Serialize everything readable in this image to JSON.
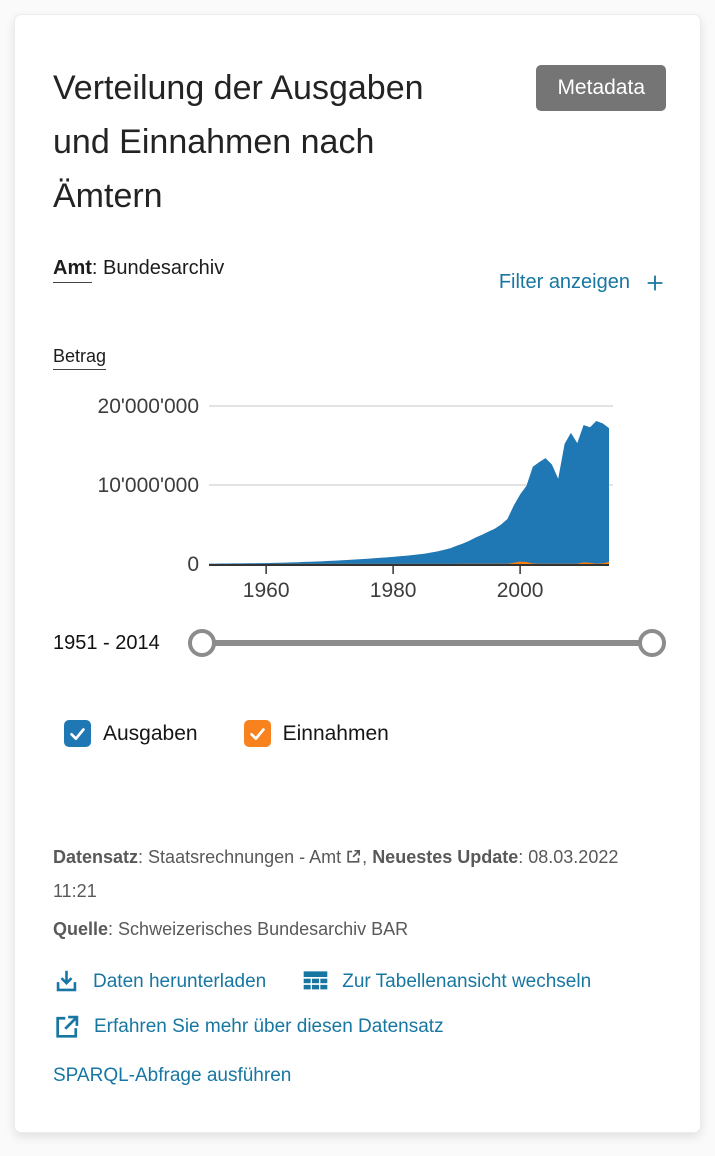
{
  "colors": {
    "ausgaben_blue": "#1f77b4",
    "einnahmen_orange": "#ff7f0e",
    "checkbox_orange": "#f8821d",
    "link_blue": "#1777a2",
    "metadata_button_gray": "#757575",
    "meta_text_gray": "#59595b"
  },
  "header": {
    "title": "Verteilung der Ausgaben und Einnahmen nach Ämtern",
    "metadata_button_label": "Metadata"
  },
  "filters": {
    "dimension_label": "Amt",
    "dimension_separator": ":",
    "dimension_value": "Bundesarchiv",
    "toggle_label": "Filter anzeigen",
    "toggle_icon": "plus-icon"
  },
  "chart_data": {
    "type": "area",
    "title": "Betrag",
    "xlabel": "",
    "ylabel": "Betrag",
    "xlim": [
      1951,
      2014
    ],
    "ylim": [
      0,
      20000000
    ],
    "grid": "horizontal",
    "legend_position": "below-as-checkboxes",
    "x_ticks": [
      {
        "value": 1960,
        "label": "1960"
      },
      {
        "value": 1980,
        "label": "1980"
      },
      {
        "value": 2000,
        "label": "2000"
      }
    ],
    "y_ticks": [
      {
        "value": 0,
        "label": "0"
      },
      {
        "value": 10000000,
        "label": "10'000'000"
      },
      {
        "value": 20000000,
        "label": "20'000'000"
      }
    ],
    "x": [
      1951,
      1952,
      1953,
      1954,
      1955,
      1956,
      1957,
      1958,
      1959,
      1960,
      1961,
      1962,
      1963,
      1964,
      1965,
      1966,
      1967,
      1968,
      1969,
      1970,
      1971,
      1972,
      1973,
      1974,
      1975,
      1976,
      1977,
      1978,
      1979,
      1980,
      1981,
      1982,
      1983,
      1984,
      1985,
      1986,
      1987,
      1988,
      1989,
      1990,
      1991,
      1992,
      1993,
      1994,
      1995,
      1996,
      1997,
      1998,
      1999,
      2000,
      2001,
      2002,
      2003,
      2004,
      2005,
      2006,
      2007,
      2008,
      2009,
      2010,
      2011,
      2012,
      2013,
      2014
    ],
    "series": [
      {
        "name": "Ausgaben",
        "color": "#1f77b4",
        "values": [
          50000,
          55000,
          60000,
          65000,
          72000,
          80000,
          90000,
          100000,
          110000,
          120000,
          140000,
          160000,
          180000,
          200000,
          230000,
          260000,
          290000,
          320000,
          350000,
          390000,
          430000,
          470000,
          520000,
          570000,
          620000,
          670000,
          720000,
          780000,
          840000,
          900000,
          970000,
          1050000,
          1130000,
          1220000,
          1320000,
          1450000,
          1600000,
          1780000,
          2000000,
          2300000,
          2600000,
          2950000,
          3350000,
          3700000,
          4100000,
          4450000,
          5000000,
          5700000,
          7400000,
          8800000,
          9900000,
          12300000,
          12900000,
          13400000,
          12600000,
          10800000,
          15200000,
          16600000,
          15300000,
          17600000,
          17300000,
          18100000,
          17800000,
          17200000
        ]
      },
      {
        "name": "Einnahmen",
        "color": "#ff7f0e",
        "values": [
          5000,
          5000,
          5000,
          5000,
          5000,
          5000,
          5000,
          5000,
          5000,
          5000,
          8000,
          8000,
          8000,
          8000,
          8000,
          8000,
          8000,
          8000,
          8000,
          8000,
          12000,
          12000,
          12000,
          12000,
          12000,
          12000,
          12000,
          12000,
          12000,
          12000,
          18000,
          18000,
          18000,
          18000,
          18000,
          18000,
          18000,
          18000,
          18000,
          18000,
          25000,
          25000,
          25000,
          25000,
          25000,
          25000,
          25000,
          25000,
          150000,
          300000,
          250000,
          60000,
          30000,
          30000,
          30000,
          30000,
          30000,
          30000,
          40000,
          200000,
          160000,
          40000,
          100000,
          250000
        ]
      }
    ]
  },
  "slider": {
    "label": "1951 - 2014",
    "min": 1951,
    "max": 2014,
    "from": 1951,
    "to": 2014
  },
  "legend": {
    "items": [
      {
        "label": "Ausgaben",
        "color": "#1f77b4",
        "checked": true
      },
      {
        "label": "Einnahmen",
        "color": "#f8821d",
        "checked": true
      }
    ]
  },
  "meta": {
    "dataset_label": "Datensatz",
    "colon": ": ",
    "dataset_value": "Staatsrechnungen - Amt",
    "dataset_link_icon": "external-link-icon",
    "separator": ", ",
    "update_label": "Neuestes Update",
    "update_date": "08.03.2022",
    "update_time": "11:21",
    "source_label": "Quelle",
    "source_value": "Schweizerisches Bundesarchiv BAR"
  },
  "actions": {
    "download_label": "Daten herunterladen",
    "download_icon": "download-icon",
    "table_view_label": "Zur Tabellenansicht wechseln",
    "table_view_icon": "table-icon",
    "learn_more_label": "Erfahren Sie mehr über diesen Datensatz",
    "learn_more_icon": "external-link-icon",
    "sparql_label": "SPARQL-Abfrage ausführen"
  }
}
